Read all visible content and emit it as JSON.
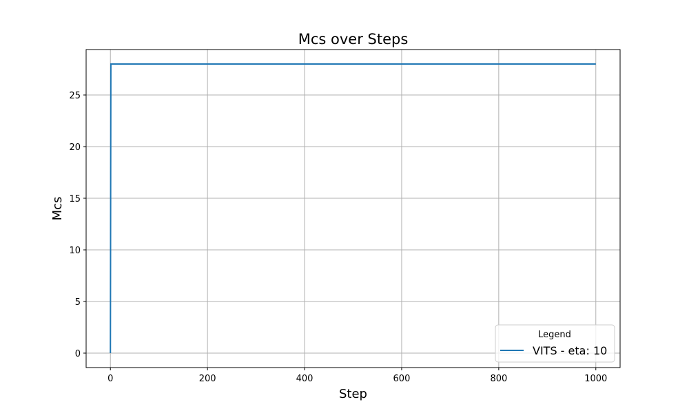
{
  "chart_data": {
    "type": "line",
    "title": "Mcs over Steps",
    "xlabel": "Step",
    "ylabel": "Mcs",
    "xlim": [
      -50,
      1050
    ],
    "ylim": [
      -1.4,
      29.4
    ],
    "xticks": [
      0,
      200,
      400,
      600,
      800,
      1000
    ],
    "yticks": [
      0,
      5,
      10,
      15,
      20,
      25
    ],
    "grid": true,
    "legend": {
      "title": "Legend",
      "position": "lower-right"
    },
    "series": [
      {
        "name": "VITS - eta: 10",
        "color": "#1f77b4",
        "x": [
          0,
          1,
          1000
        ],
        "y": [
          0,
          28,
          28
        ]
      }
    ]
  }
}
